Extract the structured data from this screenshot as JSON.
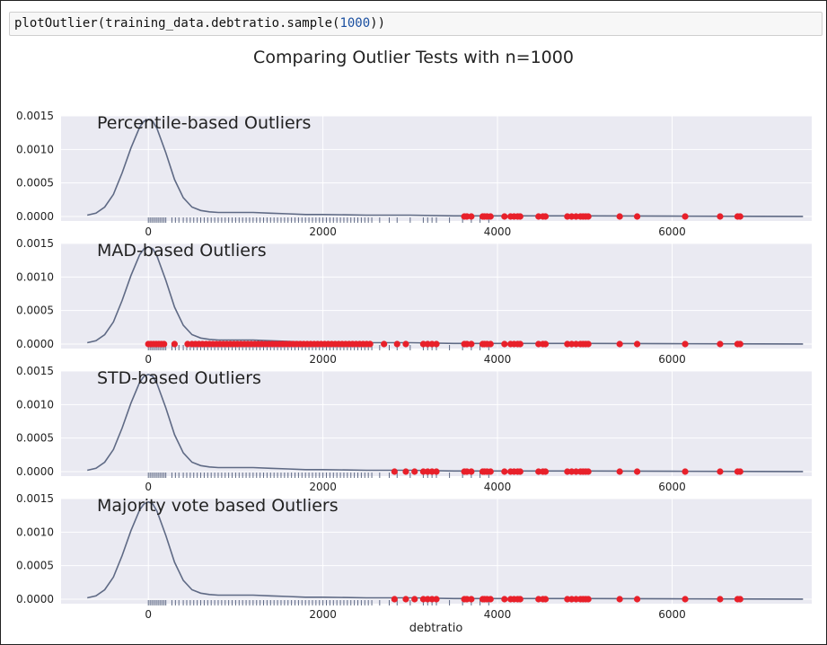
{
  "code_cell": {
    "prefix": "plotOutlier(training_data.debtratio.sample(",
    "arg": "1000",
    "suffix": "))"
  },
  "figure_title": "Comparing Outlier Tests with n=1000",
  "xlabel": "debtratio",
  "colors": {
    "panel_bg": "#eaeaf2",
    "grid": "#ffffff",
    "kde_line": "#5f6a85",
    "rug": "#5f6a85",
    "outlier": "#e8202a"
  },
  "chart_data": {
    "type": "scatter",
    "xlim": [
      -1000,
      7600
    ],
    "ylim": [
      0,
      0.0015
    ],
    "x_ticks": [
      0,
      2000,
      4000,
      6000
    ],
    "y_ticks": [
      0.0,
      0.0005,
      0.001,
      0.0015
    ],
    "y_tick_labels": [
      "0.0000",
      "0.0005",
      "0.0010",
      "0.0015"
    ],
    "grid": true,
    "kde": {
      "x": [
        -700,
        -600,
        -500,
        -400,
        -300,
        -200,
        -100,
        -50,
        0,
        50,
        100,
        200,
        300,
        400,
        500,
        600,
        700,
        800,
        1000,
        1200,
        1400,
        1600,
        1800,
        2000,
        2500,
        3000,
        3500,
        4000,
        5000,
        6000,
        7000,
        7500
      ],
      "y": [
        2e-05,
        5e-05,
        0.00014,
        0.00033,
        0.00065,
        0.00102,
        0.00133,
        0.00142,
        0.00145,
        0.00142,
        0.00131,
        0.00095,
        0.00055,
        0.00028,
        0.00014,
        9e-05,
        7e-05,
        6e-05,
        6e-05,
        6e-05,
        5e-05,
        4e-05,
        3e-05,
        3e-05,
        2e-05,
        2e-05,
        1e-05,
        1e-05,
        1e-05,
        5e-06,
        3e-06,
        2e-06
      ]
    },
    "rug": [
      0,
      20,
      40,
      60,
      80,
      100,
      120,
      140,
      160,
      180,
      200,
      270,
      310,
      350,
      400,
      440,
      480,
      520,
      560,
      600,
      640,
      680,
      720,
      760,
      800,
      840,
      880,
      920,
      960,
      1000,
      1040,
      1080,
      1120,
      1160,
      1200,
      1240,
      1280,
      1320,
      1360,
      1400,
      1440,
      1480,
      1520,
      1560,
      1600,
      1640,
      1680,
      1720,
      1760,
      1800,
      1840,
      1880,
      1920,
      1960,
      2000,
      2040,
      2080,
      2120,
      2160,
      2200,
      2240,
      2280,
      2320,
      2360,
      2400,
      2440,
      2480,
      2520,
      2560,
      2650,
      2760,
      2850,
      3000,
      3150,
      3200,
      3250,
      3300,
      3450,
      3600,
      3700,
      3800,
      3900
    ],
    "panels": [
      {
        "title": "Percentile-based Outliers",
        "outliers": [
          3620,
          3650,
          3700,
          3830,
          3850,
          3880,
          3920,
          4080,
          4150,
          4190,
          4230,
          4260,
          4470,
          4520,
          4550,
          4800,
          4850,
          4900,
          4950,
          4980,
          5010,
          5040,
          5400,
          5600,
          6150,
          6550,
          6750,
          6780
        ]
      },
      {
        "title": "MAD-based Outliers",
        "outliers": [
          0,
          30,
          60,
          90,
          120,
          150,
          180,
          300,
          450,
          500,
          540,
          580,
          620,
          660,
          700,
          740,
          780,
          820,
          860,
          900,
          940,
          980,
          1020,
          1060,
          1100,
          1140,
          1180,
          1220,
          1260,
          1300,
          1340,
          1380,
          1420,
          1460,
          1500,
          1540,
          1580,
          1620,
          1660,
          1700,
          1740,
          1780,
          1820,
          1860,
          1900,
          1940,
          1980,
          2020,
          2060,
          2100,
          2140,
          2180,
          2220,
          2260,
          2300,
          2340,
          2380,
          2420,
          2460,
          2500,
          2540,
          2700,
          2850,
          2950,
          3150,
          3200,
          3250,
          3300,
          3620,
          3650,
          3700,
          3830,
          3850,
          3880,
          3920,
          4080,
          4150,
          4190,
          4230,
          4260,
          4470,
          4520,
          4550,
          4800,
          4850,
          4900,
          4950,
          4980,
          5010,
          5040,
          5400,
          5600,
          6150,
          6550,
          6750,
          6780
        ]
      },
      {
        "title": "STD-based Outliers",
        "outliers": [
          2820,
          2950,
          3050,
          3150,
          3200,
          3250,
          3300,
          3620,
          3650,
          3700,
          3830,
          3850,
          3880,
          3920,
          4080,
          4150,
          4190,
          4230,
          4260,
          4470,
          4520,
          4550,
          4800,
          4850,
          4900,
          4950,
          4980,
          5010,
          5040,
          5400,
          5600,
          6150,
          6550,
          6750,
          6780
        ]
      },
      {
        "title": "Majority vote based Outliers",
        "outliers": [
          2820,
          2950,
          3050,
          3150,
          3200,
          3250,
          3300,
          3620,
          3650,
          3700,
          3830,
          3850,
          3880,
          3920,
          4080,
          4150,
          4190,
          4230,
          4260,
          4470,
          4520,
          4550,
          4800,
          4850,
          4900,
          4950,
          4980,
          5010,
          5040,
          5400,
          5600,
          6150,
          6550,
          6750,
          6780
        ]
      }
    ]
  }
}
